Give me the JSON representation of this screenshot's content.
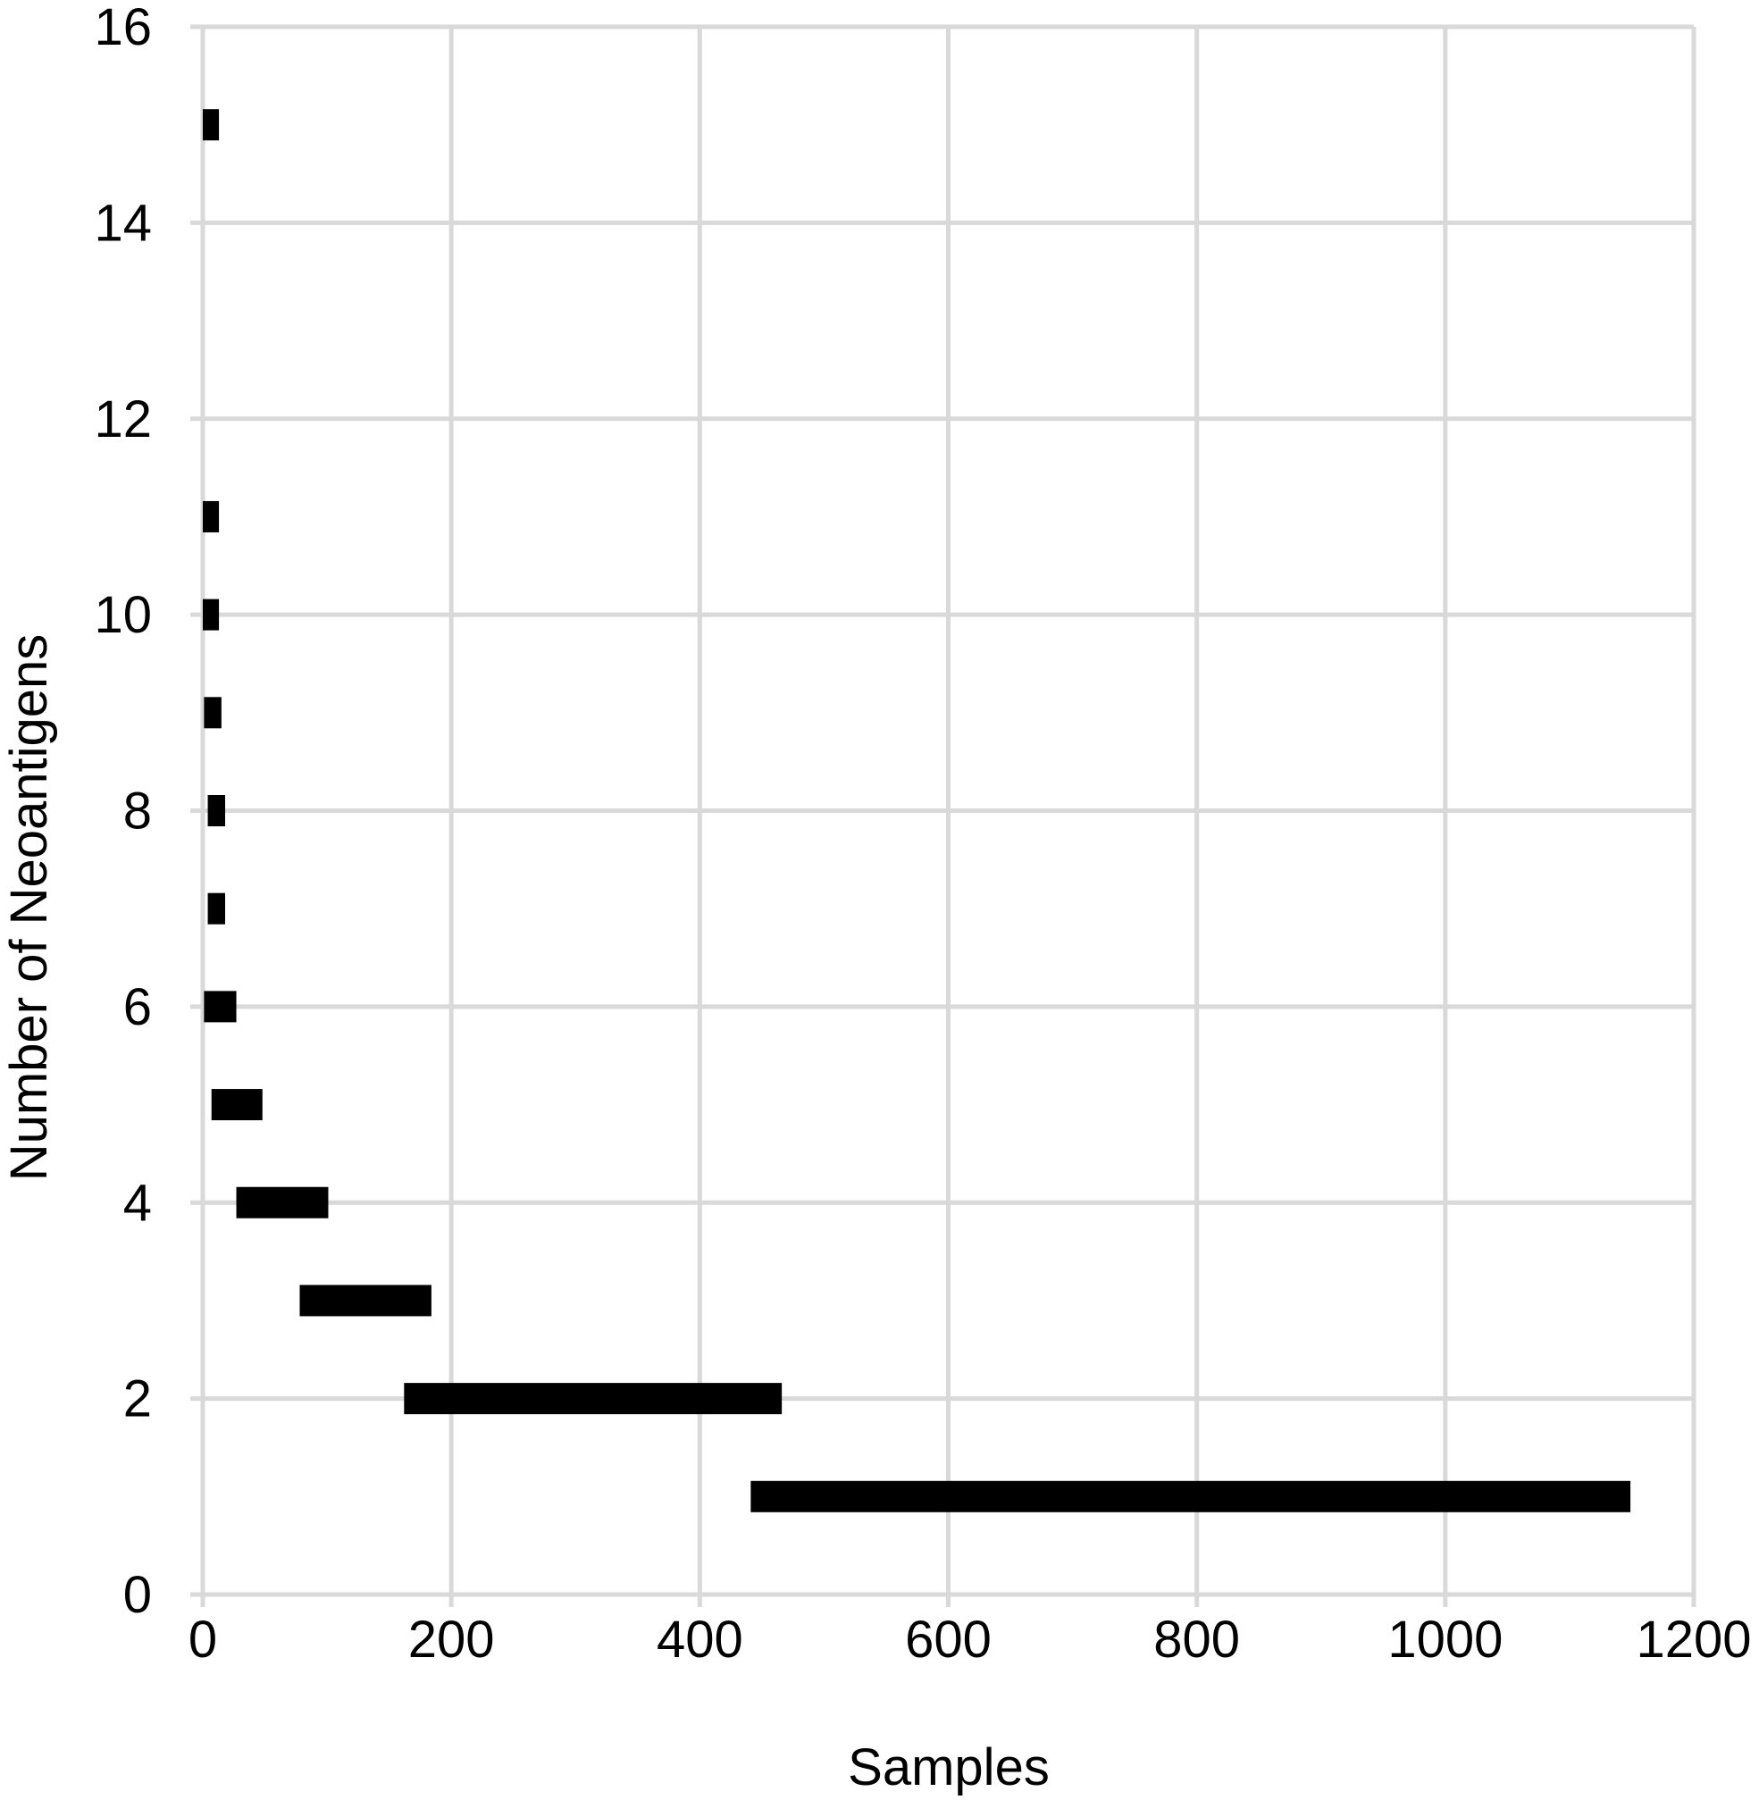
{
  "chart_data": {
    "type": "range-bar",
    "title": "",
    "xlabel": "Samples",
    "ylabel": "Number of Neoantigens",
    "xlim": [
      0,
      1200
    ],
    "ylim": [
      0,
      16
    ],
    "xticks": [
      "0",
      "200",
      "400",
      "600",
      "800",
      "1000",
      "1200"
    ],
    "yticks": [
      "0",
      "2",
      "4",
      "6",
      "8",
      "10",
      "12",
      "14",
      "16"
    ],
    "grid": true,
    "legend": "none",
    "colors": {
      "bar": "#000000",
      "grid": "#d9d9d9",
      "background": "#ffffff"
    },
    "bars": [
      {
        "y": 15,
        "x_start": 0,
        "x_end": 13
      },
      {
        "y": 11,
        "x_start": 0,
        "x_end": 13
      },
      {
        "y": 10,
        "x_start": 0,
        "x_end": 13
      },
      {
        "y": 9,
        "x_start": 1,
        "x_end": 15
      },
      {
        "y": 8,
        "x_start": 4,
        "x_end": 18
      },
      {
        "y": 7,
        "x_start": 4,
        "x_end": 18
      },
      {
        "y": 6,
        "x_start": 1,
        "x_end": 27
      },
      {
        "y": 5,
        "x_start": 7,
        "x_end": 48
      },
      {
        "y": 4,
        "x_start": 27,
        "x_end": 101
      },
      {
        "y": 3,
        "x_start": 78,
        "x_end": 184
      },
      {
        "y": 2,
        "x_start": 162,
        "x_end": 466
      },
      {
        "y": 1,
        "x_start": 441,
        "x_end": 1149
      }
    ]
  }
}
